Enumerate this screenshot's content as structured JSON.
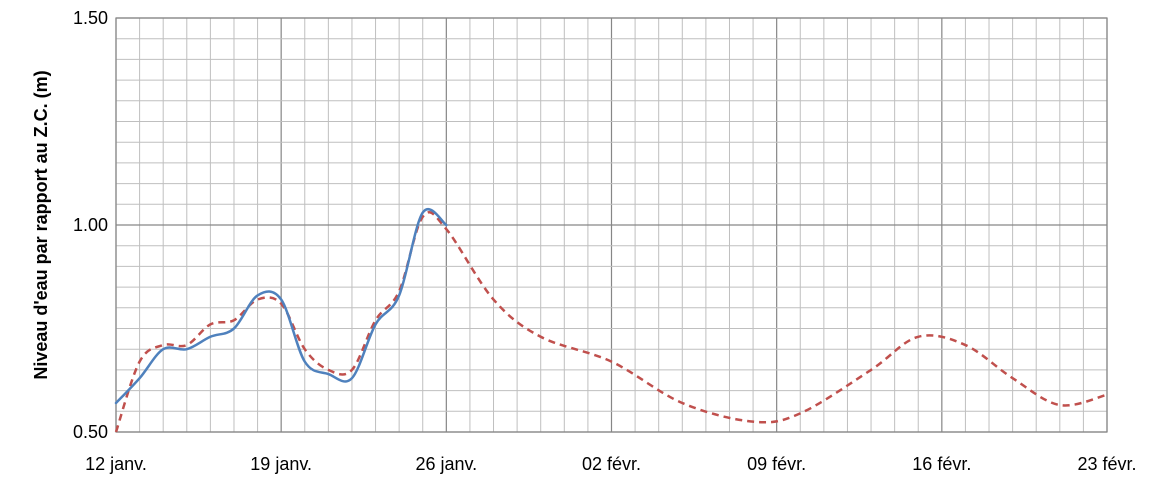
{
  "chart_data": {
    "type": "line",
    "title": "",
    "xlabel": "",
    "ylabel": "Niveau d'eau par rapport au Z.C. (m)",
    "x_range": [
      "2021-01-12",
      "2021-02-23"
    ],
    "ylim": [
      0.5,
      1.5
    ],
    "y_ticks": [
      {
        "value": 0.5,
        "label": "0.50"
      },
      {
        "value": 1.0,
        "label": "1.00"
      },
      {
        "value": 1.5,
        "label": "1.50"
      }
    ],
    "x_ticks": [
      {
        "date": "2021-01-12",
        "label": "12 janv."
      },
      {
        "date": "2021-01-19",
        "label": "19 janv."
      },
      {
        "date": "2021-01-26",
        "label": "26 janv."
      },
      {
        "date": "2021-02-02",
        "label": "02 févr."
      },
      {
        "date": "2021-02-09",
        "label": "09 févr."
      },
      {
        "date": "2021-02-16",
        "label": "16 févr."
      },
      {
        "date": "2021-02-23",
        "label": "23 févr."
      }
    ],
    "grid": true,
    "series": [
      {
        "color": "#4f81bd",
        "style": "solid",
        "x": [
          "2021-01-12",
          "2021-01-13",
          "2021-01-14",
          "2021-01-15",
          "2021-01-16",
          "2021-01-17",
          "2021-01-18",
          "2021-01-19",
          "2021-01-20",
          "2021-01-21",
          "2021-01-22",
          "2021-01-23",
          "2021-01-24",
          "2021-01-25",
          "2021-01-26"
        ],
        "y": [
          0.57,
          0.63,
          0.7,
          0.7,
          0.73,
          0.75,
          0.83,
          0.82,
          0.67,
          0.64,
          0.63,
          0.76,
          0.83,
          1.03,
          1.0
        ]
      },
      {
        "color": "#c0504d",
        "style": "dashed",
        "x": [
          "2021-01-12",
          "2021-01-13",
          "2021-01-14",
          "2021-01-15",
          "2021-01-16",
          "2021-01-17",
          "2021-01-18",
          "2021-01-19",
          "2021-01-20",
          "2021-01-21",
          "2021-01-22",
          "2021-01-23",
          "2021-01-24",
          "2021-01-25",
          "2021-01-26",
          "2021-01-28",
          "2021-01-30",
          "2021-02-02",
          "2021-02-05",
          "2021-02-08",
          "2021-02-10",
          "2021-02-13",
          "2021-02-15",
          "2021-02-17",
          "2021-02-19",
          "2021-02-21",
          "2021-02-23"
        ],
        "y": [
          0.5,
          0.67,
          0.71,
          0.71,
          0.76,
          0.77,
          0.82,
          0.81,
          0.7,
          0.65,
          0.65,
          0.77,
          0.84,
          1.02,
          0.99,
          0.82,
          0.73,
          0.67,
          0.57,
          0.525,
          0.545,
          0.65,
          0.73,
          0.71,
          0.63,
          0.565,
          0.59
        ]
      }
    ]
  }
}
